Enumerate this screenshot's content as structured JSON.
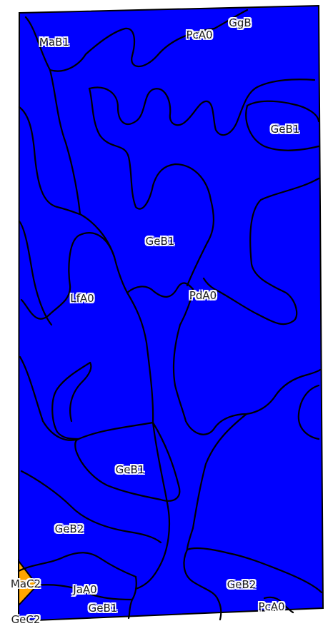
{
  "map": {
    "colors": {
      "unit_fill": "#0000ff",
      "highlight_fill": "#ffa500",
      "boundary": "#000000",
      "label_halo": "#ffffff",
      "label_text": "#222222"
    },
    "highlighted_unit": "MaC2",
    "labels": [
      {
        "id": "mab1-top",
        "text": "MaB1"
      },
      {
        "id": "pca0-top",
        "text": "PcA0"
      },
      {
        "id": "ggb",
        "text": "GgB"
      },
      {
        "id": "geb1-right",
        "text": "GeB1"
      },
      {
        "id": "geb1-center",
        "text": "GeB1"
      },
      {
        "id": "lfa0",
        "text": "LfA0"
      },
      {
        "id": "pda0",
        "text": "PdA0"
      },
      {
        "id": "geb1-lower",
        "text": "GeB1"
      },
      {
        "id": "geb2-left",
        "text": "GeB2"
      },
      {
        "id": "mac2",
        "text": "MaC2"
      },
      {
        "id": "jaa0",
        "text": "JaA0"
      },
      {
        "id": "geb1-bottom",
        "text": "GeB1"
      },
      {
        "id": "gec2",
        "text": "GeC2"
      },
      {
        "id": "geb2-right",
        "text": "GeB2"
      },
      {
        "id": "pca0-bottom",
        "text": "PcA0"
      }
    ]
  }
}
